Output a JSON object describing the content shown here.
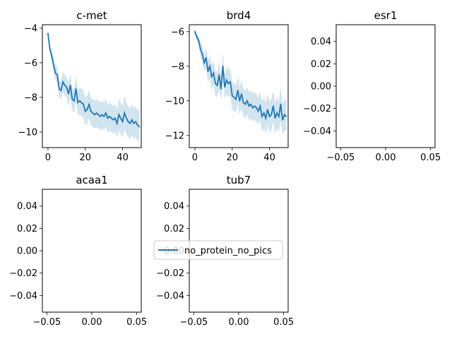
{
  "chart_data": [
    {
      "type": "line",
      "title": "c-met",
      "xlim": [
        -3,
        50
      ],
      "ylim": [
        -10.9,
        -3.8
      ],
      "xticks": [
        0,
        20,
        40
      ],
      "xtick_labels": [
        "0",
        "20",
        "40"
      ],
      "yticks": [
        -4,
        -6,
        -8,
        -10
      ],
      "ytick_labels": [
        "−4",
        "−6",
        "−8",
        "−10"
      ],
      "series": [
        {
          "name": "no_protein_no_pics",
          "color": "#1f77b4",
          "x": [
            0,
            1,
            2,
            3,
            4,
            5,
            6,
            7,
            8,
            9,
            10,
            11,
            12,
            13,
            14,
            15,
            16,
            17,
            18,
            19,
            20,
            21,
            22,
            23,
            24,
            25,
            26,
            27,
            28,
            29,
            30,
            31,
            32,
            33,
            34,
            35,
            36,
            37,
            38,
            39,
            40,
            41,
            42,
            43,
            44,
            45,
            46,
            47,
            48,
            49
          ],
          "y": [
            -4.3,
            -5.2,
            -5.6,
            -6.1,
            -6.6,
            -6.7,
            -7.5,
            -7.6,
            -7.1,
            -7.3,
            -7.4,
            -7.8,
            -7.3,
            -8.1,
            -8.2,
            -7.5,
            -8.3,
            -8.2,
            -8.3,
            -8.4,
            -8.8,
            -8.7,
            -8.4,
            -8.8,
            -8.9,
            -9.0,
            -8.9,
            -9.0,
            -9.1,
            -9.0,
            -9.1,
            -8.9,
            -9.2,
            -9.1,
            -9.2,
            -9.3,
            -9.2,
            -9.5,
            -9.0,
            -9.2,
            -9.4,
            -8.9,
            -9.2,
            -9.4,
            -9.5,
            -9.3,
            -9.5,
            -9.4,
            -9.6,
            -9.7
          ],
          "band": {
            "lower": [
              -4.4,
              -5.4,
              -5.9,
              -6.5,
              -7.0,
              -7.2,
              -8.0,
              -8.1,
              -7.7,
              -7.9,
              -8.0,
              -8.5,
              -8.0,
              -8.7,
              -8.9,
              -8.2,
              -9.0,
              -9.0,
              -9.1,
              -9.2,
              -9.6,
              -9.5,
              -9.2,
              -9.6,
              -9.7,
              -9.8,
              -9.7,
              -9.8,
              -9.9,
              -9.8,
              -9.9,
              -9.7,
              -10.0,
              -9.9,
              -10.0,
              -10.1,
              -10.0,
              -10.3,
              -9.9,
              -10.1,
              -10.3,
              -9.9,
              -10.1,
              -10.3,
              -10.4,
              -10.2,
              -10.4,
              -10.3,
              -10.5,
              -10.6
            ],
            "upper": [
              -4.2,
              -5.0,
              -5.3,
              -5.7,
              -6.2,
              -6.2,
              -7.0,
              -7.1,
              -6.5,
              -6.7,
              -6.8,
              -7.1,
              -6.6,
              -7.5,
              -7.5,
              -6.8,
              -7.6,
              -7.4,
              -7.5,
              -7.6,
              -8.0,
              -7.9,
              -7.6,
              -8.0,
              -8.1,
              -8.2,
              -8.1,
              -8.2,
              -8.3,
              -8.2,
              -8.3,
              -8.1,
              -8.4,
              -8.3,
              -8.4,
              -8.5,
              -8.4,
              -8.7,
              -8.1,
              -8.3,
              -8.5,
              -7.9,
              -8.3,
              -8.5,
              -8.6,
              -8.4,
              -8.6,
              -8.5,
              -8.7,
              -8.8
            ]
          }
        }
      ]
    },
    {
      "type": "line",
      "title": "brd4",
      "xlim": [
        -3,
        50
      ],
      "ylim": [
        -12.7,
        -5.6
      ],
      "xticks": [
        0,
        20,
        40
      ],
      "xtick_labels": [
        "0",
        "20",
        "40"
      ],
      "yticks": [
        -6,
        -8,
        -10,
        -12
      ],
      "ytick_labels": [
        "−6",
        "−8",
        "−10",
        "−12"
      ],
      "series": [
        {
          "name": "no_protein_no_pics",
          "color": "#1f77b4",
          "x": [
            0,
            1,
            2,
            3,
            4,
            5,
            6,
            7,
            8,
            9,
            10,
            11,
            12,
            13,
            14,
            15,
            16,
            17,
            18,
            19,
            20,
            21,
            22,
            23,
            24,
            25,
            26,
            27,
            28,
            29,
            30,
            31,
            32,
            33,
            34,
            35,
            36,
            37,
            38,
            39,
            40,
            41,
            42,
            43,
            44,
            45,
            46,
            47,
            48,
            49
          ],
          "y": [
            -6.0,
            -6.3,
            -6.5,
            -7.0,
            -7.3,
            -7.8,
            -7.5,
            -8.3,
            -8.0,
            -8.6,
            -8.4,
            -9.0,
            -9.1,
            -8.5,
            -9.3,
            -8.0,
            -9.2,
            -8.8,
            -9.0,
            -8.9,
            -9.7,
            -9.8,
            -9.9,
            -9.4,
            -10.0,
            -9.6,
            -10.1,
            -10.2,
            -10.0,
            -10.3,
            -10.2,
            -10.4,
            -10.3,
            -10.4,
            -10.6,
            -10.3,
            -10.9,
            -10.7,
            -11.0,
            -10.5,
            -10.9,
            -10.8,
            -10.3,
            -11.0,
            -10.7,
            -10.9,
            -10.2,
            -11.1,
            -10.8,
            -10.9
          ],
          "band": {
            "lower": [
              -6.1,
              -6.5,
              -6.8,
              -7.4,
              -7.8,
              -8.3,
              -8.1,
              -8.9,
              -8.7,
              -9.3,
              -9.1,
              -9.7,
              -9.8,
              -9.3,
              -10.0,
              -8.8,
              -9.9,
              -9.6,
              -9.8,
              -9.7,
              -10.5,
              -10.6,
              -10.7,
              -10.2,
              -10.8,
              -10.4,
              -10.9,
              -11.0,
              -10.8,
              -11.1,
              -11.0,
              -11.2,
              -11.1,
              -11.2,
              -11.4,
              -11.1,
              -11.8,
              -11.6,
              -11.9,
              -11.4,
              -11.8,
              -11.7,
              -11.2,
              -11.9,
              -11.6,
              -11.8,
              -11.2,
              -12.0,
              -11.7,
              -11.8
            ],
            "upper": [
              -5.9,
              -6.1,
              -6.2,
              -6.6,
              -6.8,
              -7.3,
              -6.9,
              -7.7,
              -7.3,
              -7.9,
              -7.7,
              -8.3,
              -8.4,
              -7.7,
              -8.6,
              -7.2,
              -8.5,
              -8.0,
              -8.2,
              -8.1,
              -8.9,
              -9.0,
              -9.1,
              -8.6,
              -9.2,
              -8.8,
              -9.3,
              -9.4,
              -9.2,
              -9.5,
              -9.4,
              -9.6,
              -9.5,
              -9.6,
              -9.8,
              -9.5,
              -10.0,
              -9.8,
              -10.1,
              -9.6,
              -10.0,
              -9.9,
              -9.4,
              -10.1,
              -9.8,
              -10.0,
              -9.2,
              -10.2,
              -9.9,
              -10.0
            ]
          }
        }
      ]
    },
    {
      "type": "line",
      "title": "esr1",
      "xlim": [
        -0.055,
        0.055
      ],
      "ylim": [
        -0.055,
        0.055
      ],
      "xticks": [
        -0.05,
        0.0,
        0.05
      ],
      "xtick_labels": [
        "−0.05",
        "0.00",
        "0.05"
      ],
      "yticks": [
        0.04,
        0.02,
        0.0,
        -0.02,
        -0.04
      ],
      "ytick_labels": [
        "0.04",
        "0.02",
        "0.00",
        "−0.02",
        "−0.04"
      ],
      "series": []
    },
    {
      "type": "line",
      "title": "acaa1",
      "xlim": [
        -0.055,
        0.055
      ],
      "ylim": [
        -0.055,
        0.055
      ],
      "xticks": [
        -0.05,
        0.0,
        0.05
      ],
      "xtick_labels": [
        "−0.05",
        "0.00",
        "0.05"
      ],
      "yticks": [
        0.04,
        0.02,
        0.0,
        -0.02,
        -0.04
      ],
      "ytick_labels": [
        "0.04",
        "0.02",
        "0.00",
        "−0.02",
        "−0.04"
      ],
      "series": []
    },
    {
      "type": "line",
      "title": "tub7",
      "xlim": [
        -0.055,
        0.055
      ],
      "ylim": [
        -0.055,
        0.055
      ],
      "xticks": [
        -0.05,
        0.0,
        0.05
      ],
      "xtick_labels": [
        "−0.05",
        "0.00",
        "0.05"
      ],
      "yticks": [
        0.04,
        0.02,
        0.0,
        -0.02,
        -0.04
      ],
      "ytick_labels": [
        "0.04",
        "0.02",
        "0.00",
        "−0.02",
        "−0.04"
      ],
      "series": []
    }
  ],
  "legend": {
    "label": "no_protein_no_pics",
    "color": "#1f77b4",
    "placement": "center-left of tub7 panel"
  }
}
